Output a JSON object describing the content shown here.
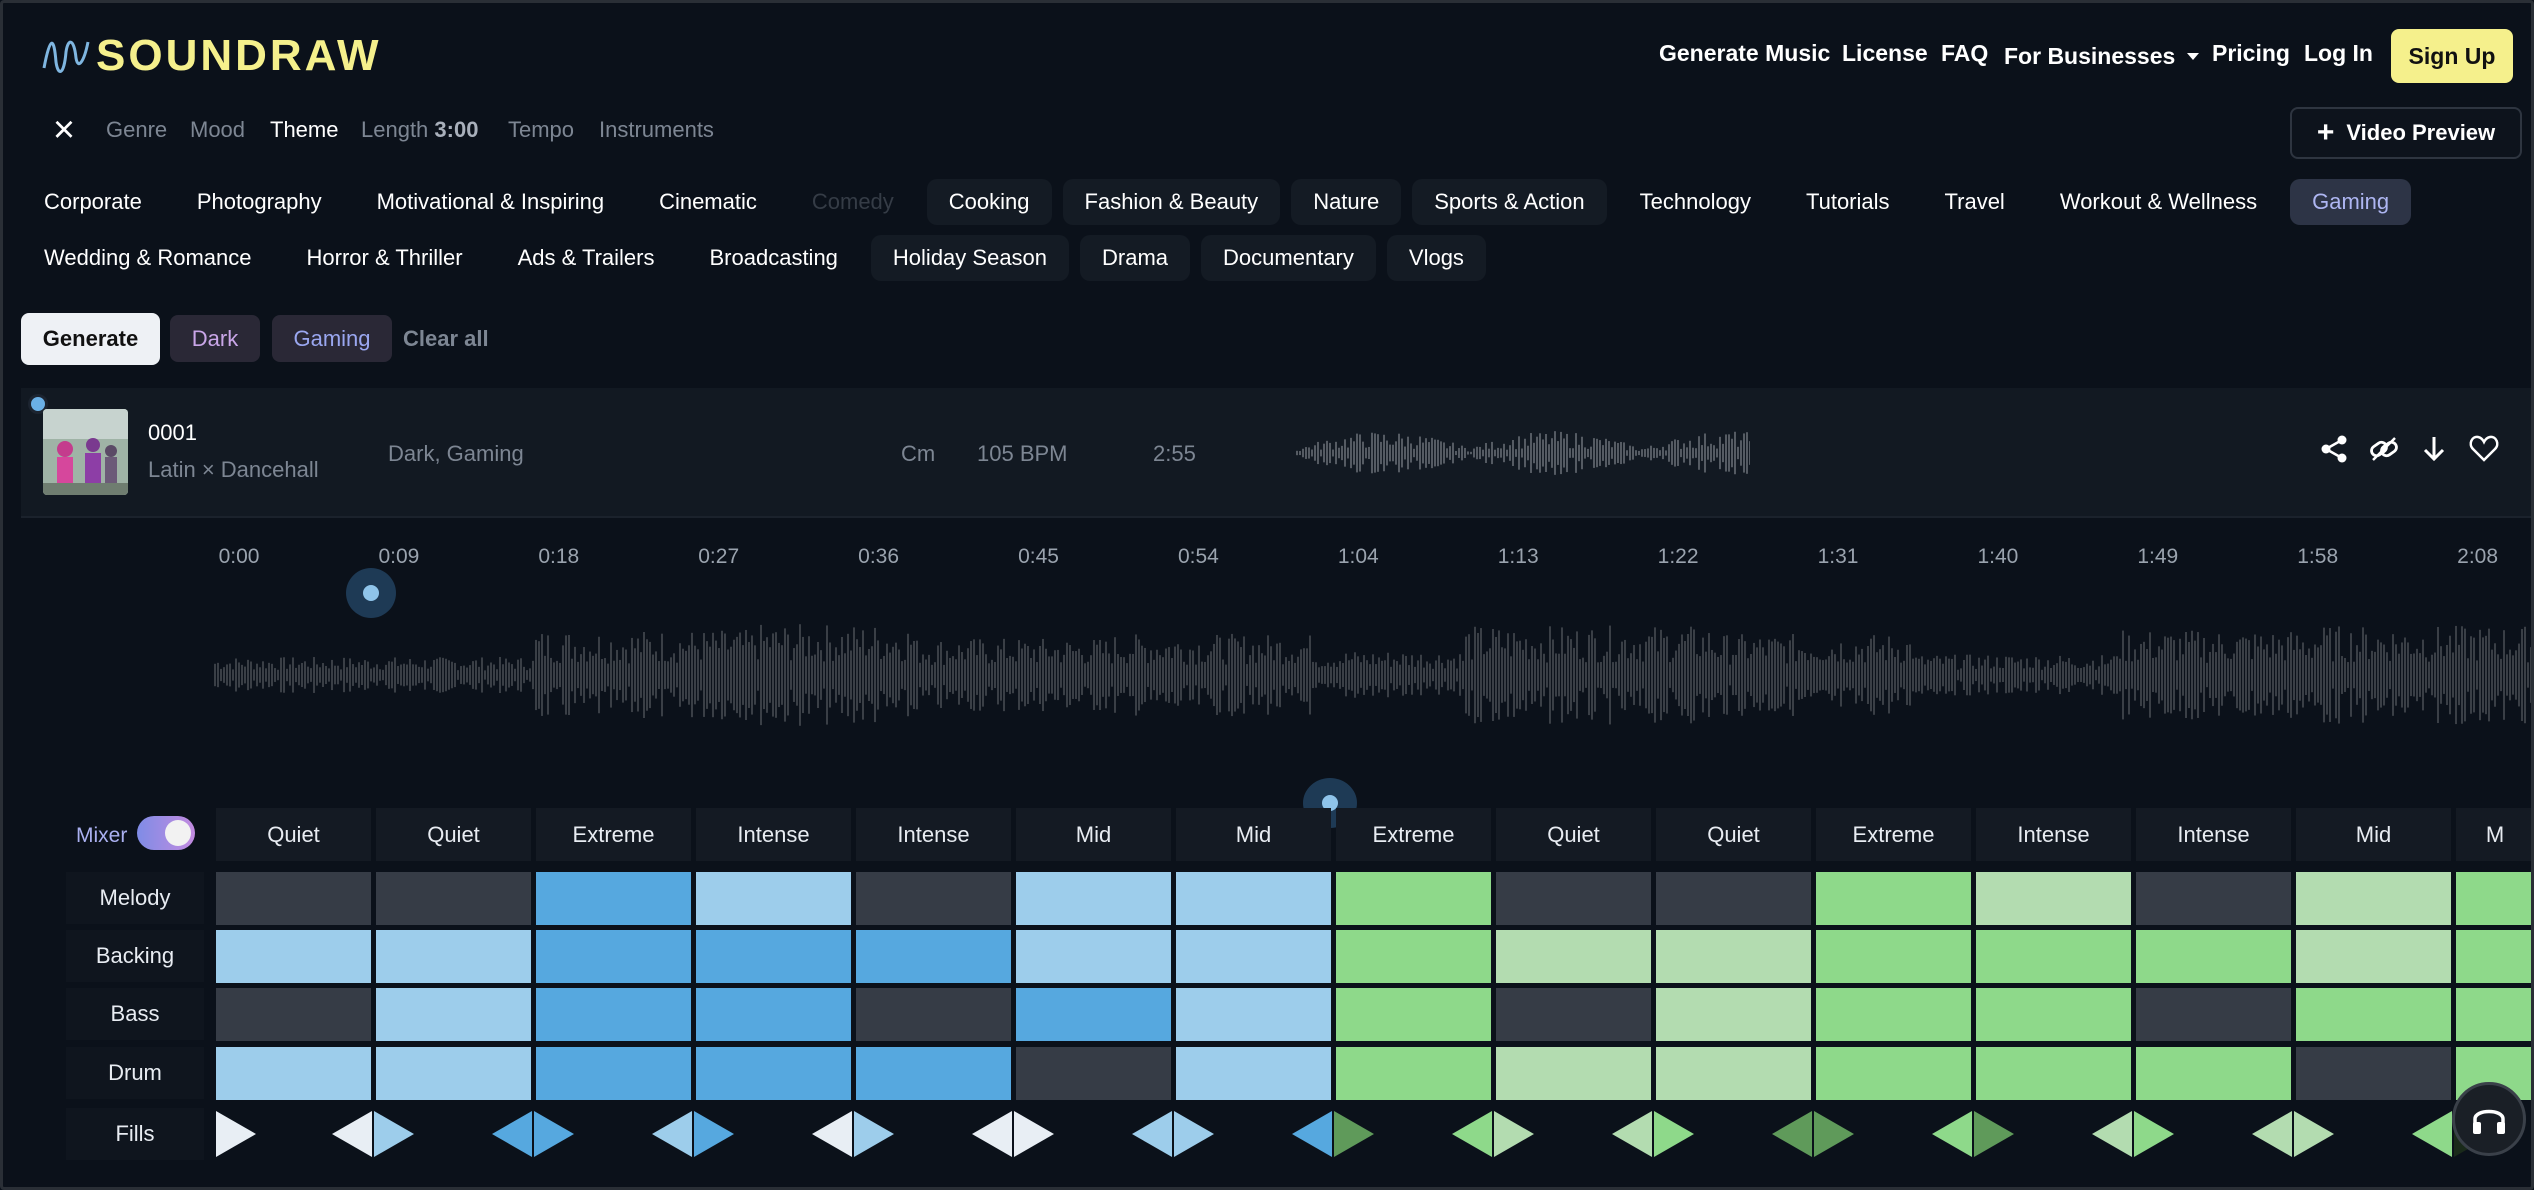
{
  "brand": {
    "name": "SOUNDRAW"
  },
  "nav": {
    "generate_music": "Generate Music",
    "license": "License",
    "faq": "FAQ",
    "for_businesses": "For Businesses",
    "pricing": "Pricing",
    "log_in": "Log In",
    "sign_up": "Sign Up"
  },
  "filters": {
    "genre": "Genre",
    "mood": "Mood",
    "theme": "Theme",
    "length_label": "Length",
    "length_value": "3:00",
    "tempo": "Tempo",
    "instruments": "Instruments",
    "active": "Theme",
    "video_preview": "Video Preview"
  },
  "themes_row1": [
    {
      "label": "Corporate",
      "state": "plain"
    },
    {
      "label": "Photography",
      "state": "plain"
    },
    {
      "label": "Motivational & Inspiring",
      "state": "plain"
    },
    {
      "label": "Cinematic",
      "state": "plain"
    },
    {
      "label": "Comedy",
      "state": "disabled"
    },
    {
      "label": "Cooking",
      "state": "tint"
    },
    {
      "label": "Fashion & Beauty",
      "state": "tint"
    },
    {
      "label": "Nature",
      "state": "tint"
    },
    {
      "label": "Sports & Action",
      "state": "tint"
    },
    {
      "label": "Technology",
      "state": "plain"
    },
    {
      "label": "Tutorials",
      "state": "plain"
    },
    {
      "label": "Travel",
      "state": "plain"
    },
    {
      "label": "Workout & Wellness",
      "state": "plain"
    },
    {
      "label": "Gaming",
      "state": "selected"
    }
  ],
  "themes_row2": [
    {
      "label": "Wedding & Romance",
      "state": "plain"
    },
    {
      "label": "Horror & Thriller",
      "state": "plain"
    },
    {
      "label": "Ads & Trailers",
      "state": "plain"
    },
    {
      "label": "Broadcasting",
      "state": "plain"
    },
    {
      "label": "Holiday Season",
      "state": "tint"
    },
    {
      "label": "Drama",
      "state": "tint"
    },
    {
      "label": "Documentary",
      "state": "tint"
    },
    {
      "label": "Vlogs",
      "state": "tint"
    }
  ],
  "actions": {
    "generate": "Generate",
    "tags": [
      {
        "label": "Dark",
        "color": "#c9a6e8"
      },
      {
        "label": "Gaming",
        "color": "#9aa7f0"
      }
    ],
    "clear_all": "Clear all"
  },
  "track": {
    "number": "0001",
    "genre": "Latin × Dancehall",
    "themes": "Dark, Gaming",
    "key": "Cm",
    "bpm": "105 BPM",
    "duration": "2:55"
  },
  "timeline": {
    "ticks": [
      "0:00",
      "0:09",
      "0:18",
      "0:27",
      "0:36",
      "0:45",
      "0:54",
      "1:04",
      "1:13",
      "1:22",
      "1:31",
      "1:40",
      "1:49",
      "1:58",
      "2:08"
    ]
  },
  "mixer": {
    "label": "Mixer",
    "enabled": true,
    "sections": [
      "Quiet",
      "Quiet",
      "Extreme",
      "Intense",
      "Intense",
      "Mid",
      "Mid",
      "Extreme",
      "Quiet",
      "Quiet",
      "Extreme",
      "Intense",
      "Intense",
      "Mid",
      "M"
    ],
    "rows": [
      {
        "name": "Melody",
        "levels": [
          0,
          0,
          3,
          2,
          0,
          2,
          2,
          2,
          0,
          0,
          2,
          1,
          0,
          1,
          2
        ]
      },
      {
        "name": "Backing",
        "levels": [
          2,
          2,
          3,
          3,
          3,
          2,
          2,
          2,
          1,
          1,
          2,
          2,
          2,
          1,
          2
        ]
      },
      {
        "name": "Bass",
        "levels": [
          0,
          2,
          3,
          3,
          0,
          3,
          2,
          2,
          0,
          1,
          2,
          2,
          0,
          2,
          2
        ]
      },
      {
        "name": "Drum",
        "levels": [
          2,
          2,
          3,
          3,
          3,
          0,
          2,
          2,
          1,
          1,
          2,
          2,
          2,
          0,
          2
        ]
      }
    ],
    "fills_label": "Fills"
  },
  "colors": {
    "accent_yellow": "#f5f08c",
    "blue_light": "#9dcdeb",
    "blue_dark": "#56a8df",
    "green_light": "#b3dcb0",
    "green_mid": "#8ed98a",
    "cell_off": "#363c46"
  },
  "icons": [
    "share-icon",
    "link-off-icon",
    "download-icon",
    "heart-icon",
    "close-icon",
    "plus-icon",
    "chevron-down-icon",
    "headphones-icon"
  ]
}
